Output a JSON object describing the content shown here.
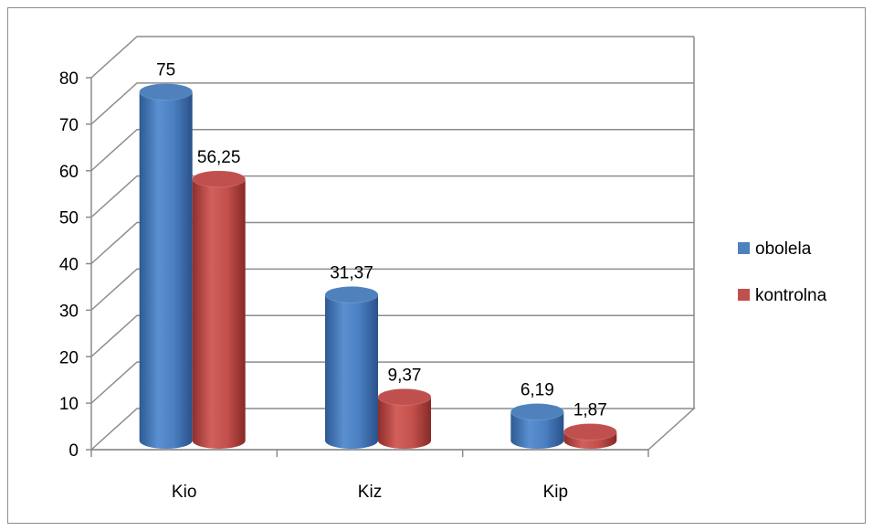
{
  "chart_data": {
    "type": "bar",
    "variant": "3d-cylinder",
    "categories": [
      "Kio",
      "Kiz",
      "Kip"
    ],
    "series": [
      {
        "name": "obolela",
        "values": [
          75,
          31.37,
          6.19
        ],
        "labels": [
          "75",
          "31,37",
          "6,19"
        ],
        "color": "#4f81bd"
      },
      {
        "name": "kontrolna",
        "values": [
          56.25,
          9.37,
          1.87
        ],
        "labels": [
          "56,25",
          "9,37",
          "1,87"
        ],
        "color": "#c0504d"
      }
    ],
    "ylim": [
      0,
      80
    ],
    "yticks": [
      0,
      10,
      20,
      30,
      40,
      50,
      60,
      70,
      80
    ],
    "grid": true,
    "legend_position": "right"
  }
}
